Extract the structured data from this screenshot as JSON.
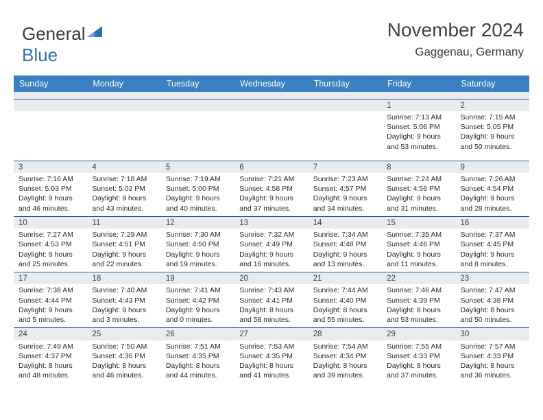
{
  "logo": {
    "part1": "General",
    "part2": "Blue"
  },
  "title": "November 2024",
  "location": "Gaggenau, Germany",
  "colors": {
    "header_bg": "#3a80c3",
    "header_text": "#ffffff",
    "daynum_bg": "#e8ebef",
    "day_border": "#2a5a8e",
    "detail_bg": "#ffffff",
    "logo_text": "#3a3a3a",
    "logo_blue": "#2a72b5",
    "title_text": "#414141",
    "body_text": "#2a2a2a"
  },
  "fonts": {
    "title_size": 28,
    "location_size": 17,
    "logo_size": 26,
    "header_size": 12.5,
    "daynum_size": 11.5,
    "detail_size": 10.5
  },
  "days_of_week": [
    "Sunday",
    "Monday",
    "Tuesday",
    "Wednesday",
    "Thursday",
    "Friday",
    "Saturday"
  ],
  "weeks": [
    [
      {
        "n": "",
        "d": ""
      },
      {
        "n": "",
        "d": ""
      },
      {
        "n": "",
        "d": ""
      },
      {
        "n": "",
        "d": ""
      },
      {
        "n": "",
        "d": ""
      },
      {
        "n": "1",
        "d": "Sunrise: 7:13 AM\nSunset: 5:06 PM\nDaylight: 9 hours and 53 minutes."
      },
      {
        "n": "2",
        "d": "Sunrise: 7:15 AM\nSunset: 5:05 PM\nDaylight: 9 hours and 50 minutes."
      }
    ],
    [
      {
        "n": "3",
        "d": "Sunrise: 7:16 AM\nSunset: 5:03 PM\nDaylight: 9 hours and 46 minutes."
      },
      {
        "n": "4",
        "d": "Sunrise: 7:18 AM\nSunset: 5:02 PM\nDaylight: 9 hours and 43 minutes."
      },
      {
        "n": "5",
        "d": "Sunrise: 7:19 AM\nSunset: 5:00 PM\nDaylight: 9 hours and 40 minutes."
      },
      {
        "n": "6",
        "d": "Sunrise: 7:21 AM\nSunset: 4:58 PM\nDaylight: 9 hours and 37 minutes."
      },
      {
        "n": "7",
        "d": "Sunrise: 7:23 AM\nSunset: 4:57 PM\nDaylight: 9 hours and 34 minutes."
      },
      {
        "n": "8",
        "d": "Sunrise: 7:24 AM\nSunset: 4:56 PM\nDaylight: 9 hours and 31 minutes."
      },
      {
        "n": "9",
        "d": "Sunrise: 7:26 AM\nSunset: 4:54 PM\nDaylight: 9 hours and 28 minutes."
      }
    ],
    [
      {
        "n": "10",
        "d": "Sunrise: 7:27 AM\nSunset: 4:53 PM\nDaylight: 9 hours and 25 minutes."
      },
      {
        "n": "11",
        "d": "Sunrise: 7:29 AM\nSunset: 4:51 PM\nDaylight: 9 hours and 22 minutes."
      },
      {
        "n": "12",
        "d": "Sunrise: 7:30 AM\nSunset: 4:50 PM\nDaylight: 9 hours and 19 minutes."
      },
      {
        "n": "13",
        "d": "Sunrise: 7:32 AM\nSunset: 4:49 PM\nDaylight: 9 hours and 16 minutes."
      },
      {
        "n": "14",
        "d": "Sunrise: 7:34 AM\nSunset: 4:48 PM\nDaylight: 9 hours and 13 minutes."
      },
      {
        "n": "15",
        "d": "Sunrise: 7:35 AM\nSunset: 4:46 PM\nDaylight: 9 hours and 11 minutes."
      },
      {
        "n": "16",
        "d": "Sunrise: 7:37 AM\nSunset: 4:45 PM\nDaylight: 9 hours and 8 minutes."
      }
    ],
    [
      {
        "n": "17",
        "d": "Sunrise: 7:38 AM\nSunset: 4:44 PM\nDaylight: 9 hours and 5 minutes."
      },
      {
        "n": "18",
        "d": "Sunrise: 7:40 AM\nSunset: 4:43 PM\nDaylight: 9 hours and 3 minutes."
      },
      {
        "n": "19",
        "d": "Sunrise: 7:41 AM\nSunset: 4:42 PM\nDaylight: 9 hours and 0 minutes."
      },
      {
        "n": "20",
        "d": "Sunrise: 7:43 AM\nSunset: 4:41 PM\nDaylight: 8 hours and 58 minutes."
      },
      {
        "n": "21",
        "d": "Sunrise: 7:44 AM\nSunset: 4:40 PM\nDaylight: 8 hours and 55 minutes."
      },
      {
        "n": "22",
        "d": "Sunrise: 7:46 AM\nSunset: 4:39 PM\nDaylight: 8 hours and 53 minutes."
      },
      {
        "n": "23",
        "d": "Sunrise: 7:47 AM\nSunset: 4:38 PM\nDaylight: 8 hours and 50 minutes."
      }
    ],
    [
      {
        "n": "24",
        "d": "Sunrise: 7:49 AM\nSunset: 4:37 PM\nDaylight: 8 hours and 48 minutes."
      },
      {
        "n": "25",
        "d": "Sunrise: 7:50 AM\nSunset: 4:36 PM\nDaylight: 8 hours and 46 minutes."
      },
      {
        "n": "26",
        "d": "Sunrise: 7:51 AM\nSunset: 4:35 PM\nDaylight: 8 hours and 44 minutes."
      },
      {
        "n": "27",
        "d": "Sunrise: 7:53 AM\nSunset: 4:35 PM\nDaylight: 8 hours and 41 minutes."
      },
      {
        "n": "28",
        "d": "Sunrise: 7:54 AM\nSunset: 4:34 PM\nDaylight: 8 hours and 39 minutes."
      },
      {
        "n": "29",
        "d": "Sunrise: 7:55 AM\nSunset: 4:33 PM\nDaylight: 8 hours and 37 minutes."
      },
      {
        "n": "30",
        "d": "Sunrise: 7:57 AM\nSunset: 4:33 PM\nDaylight: 8 hours and 36 minutes."
      }
    ]
  ]
}
